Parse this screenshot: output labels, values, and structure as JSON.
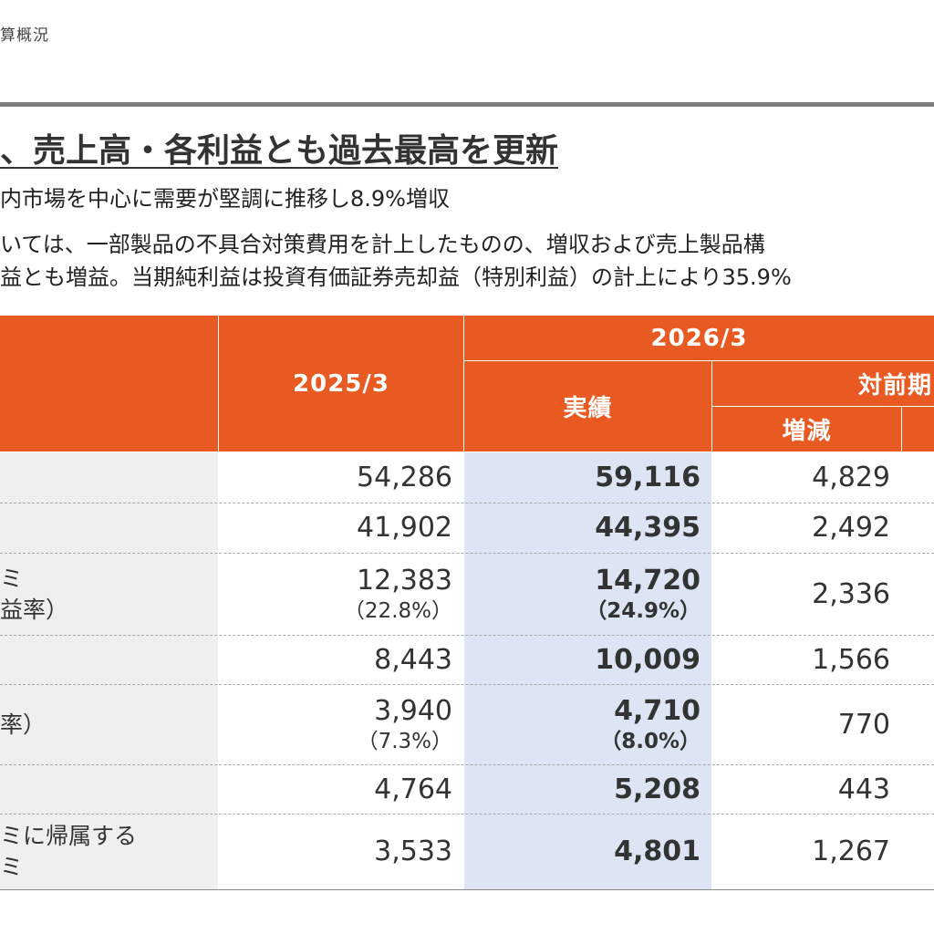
{
  "page": {
    "breadcrumb": "算概況",
    "headline": "、売上高・各利益とも過去最高を更新",
    "lines": [
      "内市場を中心に需要が堅調に推移し8.9%増収",
      "いては、一部製品の不具合対策費用を計上したものの、増収および売上製品構",
      "益とも増益。当期純利益は投資有価証券売却益（特別利益）の計上により35.9%"
    ]
  },
  "table": {
    "header": {
      "fy2025": "2025/3",
      "fy2026": "2026/3",
      "actual": "実績",
      "vs_prior": "対前期",
      "change": "増減"
    },
    "rows": [
      {
        "label": [
          "",
          ""
        ],
        "prev": "54,286",
        "prev_sub": "",
        "actual": "59,116",
        "actual_sub": "",
        "change": "4,829"
      },
      {
        "label": [
          "",
          ""
        ],
        "prev": "41,902",
        "prev_sub": "",
        "actual": "44,395",
        "actual_sub": "",
        "change": "2,492"
      },
      {
        "label": [
          "ミ",
          "益率）"
        ],
        "prev": "12,383",
        "prev_sub": "（22.8%）",
        "actual": "14,720",
        "actual_sub": "（24.9%）",
        "change": "2,336"
      },
      {
        "label": [
          "",
          ""
        ],
        "prev": "8,443",
        "prev_sub": "",
        "actual": "10,009",
        "actual_sub": "",
        "change": "1,566"
      },
      {
        "label": [
          "",
          "率）"
        ],
        "prev": "3,940",
        "prev_sub": "（7.3%）",
        "actual": "4,710",
        "actual_sub": "（8.0%）",
        "change": "770"
      },
      {
        "label": [
          "",
          ""
        ],
        "prev": "4,764",
        "prev_sub": "",
        "actual": "5,208",
        "actual_sub": "",
        "change": "443"
      },
      {
        "label": [
          "ミに帰属する",
          "ミ"
        ],
        "prev": "3,533",
        "prev_sub": "",
        "actual": "4,801",
        "actual_sub": "",
        "change": "1,267"
      }
    ]
  },
  "colors": {
    "header_orange": "#e85a22",
    "actual_highlight": "#dde5f4",
    "label_gray": "#efefef",
    "rule_gray": "#7f7f7f"
  }
}
